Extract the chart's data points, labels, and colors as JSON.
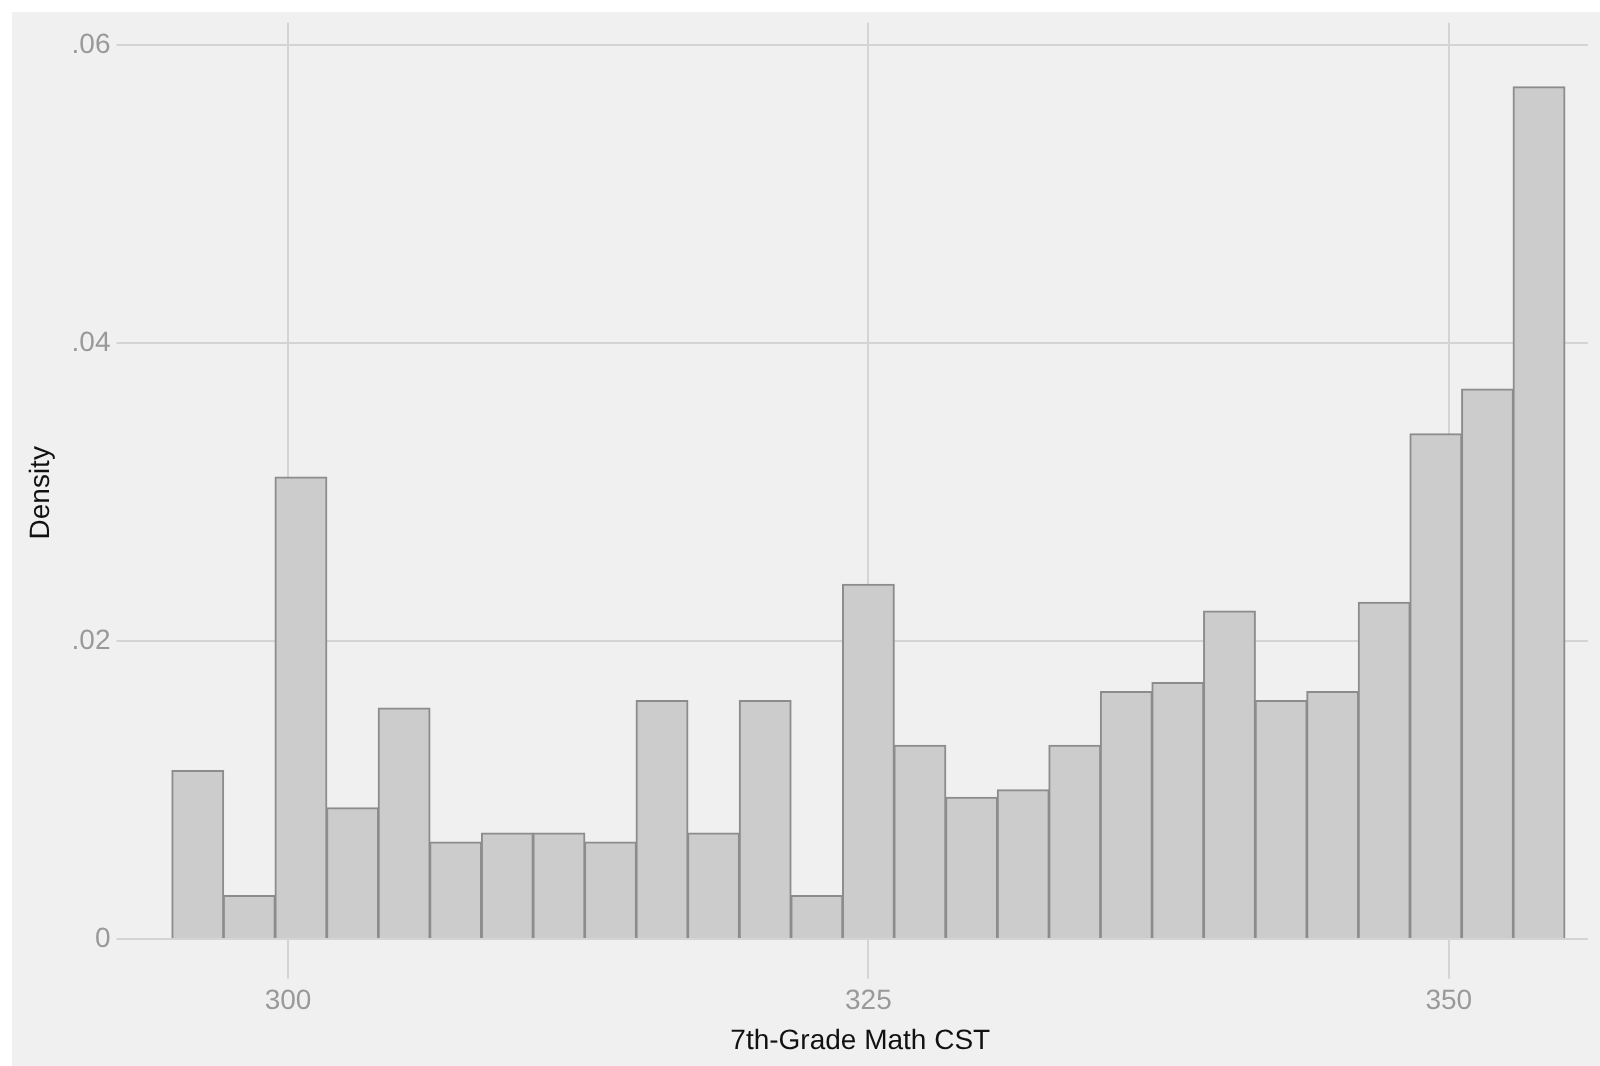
{
  "chart_data": {
    "type": "histogram",
    "xlabel": "7th-Grade Math CST",
    "ylabel": "Density",
    "bins": [
      295,
      297.22,
      299.44,
      301.67,
      303.89,
      306.11,
      308.33,
      310.56,
      312.78,
      315,
      317.22,
      319.44,
      321.67,
      323.89,
      326.11,
      328.33,
      330.56,
      332.78,
      335,
      337.22,
      339.44,
      341.67,
      343.89,
      346.11,
      348.33,
      350.56,
      352.78,
      355
    ],
    "values": [
      0.0113,
      0.0029,
      0.031,
      0.0088,
      0.0155,
      0.0065,
      0.0071,
      0.0071,
      0.0065,
      0.016,
      0.0071,
      0.016,
      0.0029,
      0.0238,
      0.013,
      0.0095,
      0.01,
      0.013,
      0.0166,
      0.0172,
      0.022,
      0.016,
      0.0166,
      0.0226,
      0.0339,
      0.0369,
      0.0572
    ],
    "color": "#cccccc",
    "xlim": [
      293.3,
      356
    ],
    "xticks": [
      300,
      325,
      350
    ],
    "ylim": [
      -0.0016,
      0.0615
    ],
    "yticks": [
      0,
      {
        "value": 0.02,
        "label": ".02"
      },
      {
        "value": 0.04,
        "label": ".04"
      },
      {
        "value": 0.06,
        "label": ".06"
      }
    ],
    "grid": true
  }
}
